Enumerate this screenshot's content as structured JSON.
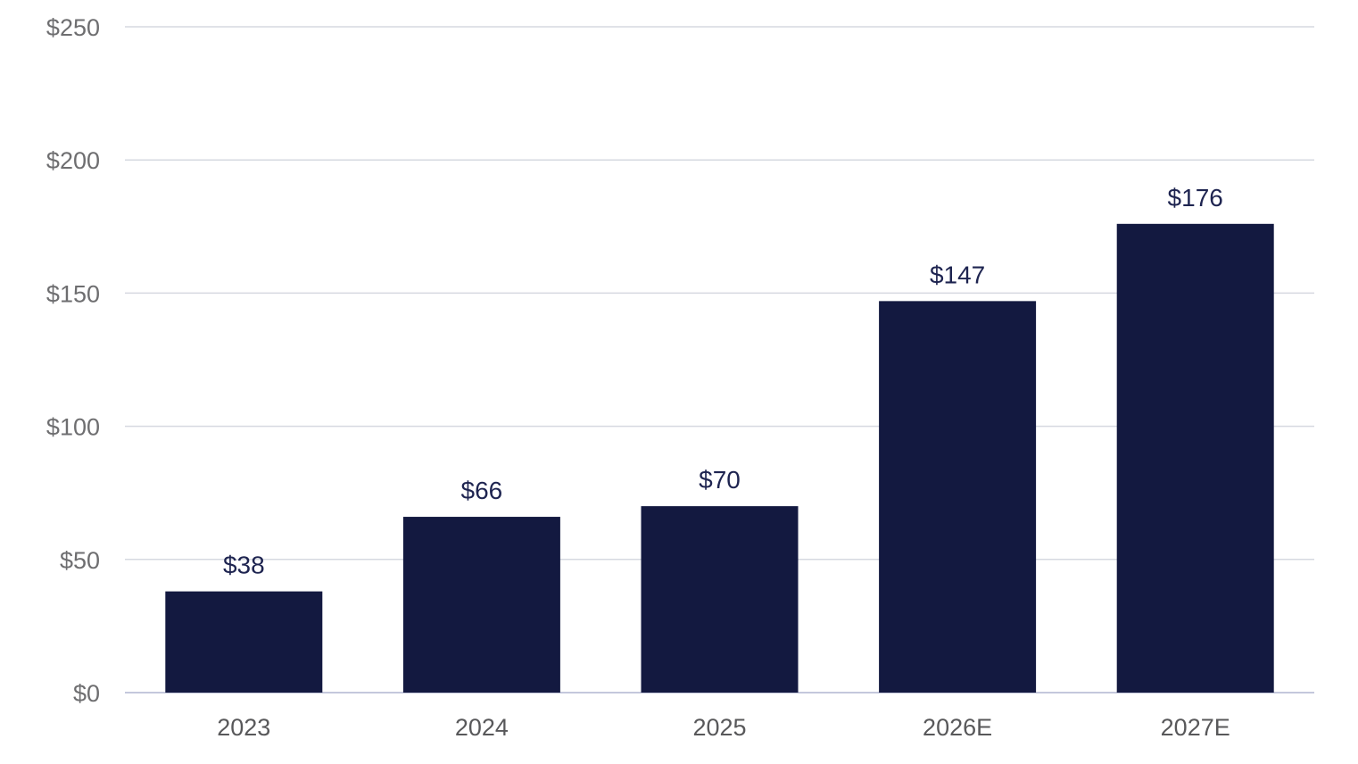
{
  "chart_data": {
    "type": "bar",
    "title": "",
    "xlabel": "",
    "ylabel": "",
    "categories": [
      "2023",
      "2024",
      "2025",
      "2026E",
      "2027E"
    ],
    "values": [
      38,
      66,
      70,
      147,
      176
    ],
    "data_labels": [
      "$38",
      "$66",
      "$70",
      "$147",
      "$176"
    ],
    "ylim": [
      0,
      250
    ],
    "y_ticks": [
      0,
      50,
      100,
      150,
      200,
      250
    ],
    "y_tick_labels": [
      "$0",
      "$50",
      "$100",
      "$150",
      "$200",
      "$250"
    ],
    "grid": true,
    "legend": "none",
    "bar_color": "#131940"
  }
}
